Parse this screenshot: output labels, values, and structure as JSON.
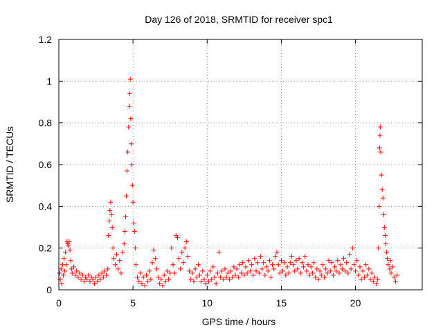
{
  "chart_data": {
    "type": "scatter",
    "title": "Day 126 of 2018, SRMTID for receiver spc1",
    "xlabel": "GPS time / hours",
    "ylabel": "SRMTID / TECUs",
    "xlim": [
      0,
      24.5
    ],
    "ylim": [
      0,
      1.2
    ],
    "xticks": [
      0,
      5,
      10,
      15,
      20
    ],
    "yticks": [
      0,
      0.2,
      0.4,
      0.6,
      0.8,
      1,
      1.2
    ],
    "ytick_labels": [
      "0",
      "0.2",
      "0.4",
      "0.6",
      "0.8",
      "1",
      "1.2"
    ],
    "grid": true,
    "marker": "+",
    "color": "#ff0000",
    "series": [
      {
        "name": "SRMTID",
        "points": [
          [
            0.05,
            0.08
          ],
          [
            0.1,
            0.05
          ],
          [
            0.15,
            0.1
          ],
          [
            0.2,
            0.03
          ],
          [
            0.25,
            0.12
          ],
          [
            0.3,
            0.07
          ],
          [
            0.35,
            0.15
          ],
          [
            0.4,
            0.09
          ],
          [
            0.45,
            0.18
          ],
          [
            0.5,
            0.12
          ],
          [
            0.55,
            0.23
          ],
          [
            0.6,
            0.22
          ],
          [
            0.65,
            0.21
          ],
          [
            0.7,
            0.23
          ],
          [
            0.75,
            0.19
          ],
          [
            0.8,
            0.14
          ],
          [
            0.85,
            0.1
          ],
          [
            0.9,
            0.08
          ],
          [
            1.0,
            0.11
          ],
          [
            1.1,
            0.07
          ],
          [
            1.2,
            0.09
          ],
          [
            1.3,
            0.06
          ],
          [
            1.4,
            0.08
          ],
          [
            1.5,
            0.05
          ],
          [
            1.6,
            0.07
          ],
          [
            1.7,
            0.04
          ],
          [
            1.8,
            0.06
          ],
          [
            1.9,
            0.05
          ],
          [
            2.0,
            0.07
          ],
          [
            2.1,
            0.04
          ],
          [
            2.2,
            0.06
          ],
          [
            2.3,
            0.05
          ],
          [
            2.4,
            0.03
          ],
          [
            2.5,
            0.06
          ],
          [
            2.6,
            0.04
          ],
          [
            2.7,
            0.07
          ],
          [
            2.8,
            0.05
          ],
          [
            2.9,
            0.08
          ],
          [
            3.0,
            0.06
          ],
          [
            3.1,
            0.09
          ],
          [
            3.2,
            0.07
          ],
          [
            3.3,
            0.1
          ],
          [
            3.35,
            0.26
          ],
          [
            3.4,
            0.33
          ],
          [
            3.45,
            0.38
          ],
          [
            3.5,
            0.42
          ],
          [
            3.55,
            0.36
          ],
          [
            3.6,
            0.3
          ],
          [
            3.65,
            0.2
          ],
          [
            3.7,
            0.15
          ],
          [
            3.8,
            0.12
          ],
          [
            3.9,
            0.17
          ],
          [
            4.0,
            0.1
          ],
          [
            4.1,
            0.14
          ],
          [
            4.2,
            0.08
          ],
          [
            4.3,
            0.18
          ],
          [
            4.4,
            0.22
          ],
          [
            4.45,
            0.28
          ],
          [
            4.5,
            0.35
          ],
          [
            4.55,
            0.45
          ],
          [
            4.6,
            0.57
          ],
          [
            4.65,
            0.66
          ],
          [
            4.7,
            0.78
          ],
          [
            4.75,
            0.88
          ],
          [
            4.78,
            0.94
          ],
          [
            4.82,
            1.01
          ],
          [
            4.85,
            0.82
          ],
          [
            4.88,
            0.7
          ],
          [
            4.92,
            0.6
          ],
          [
            4.96,
            0.5
          ],
          [
            5.0,
            0.42
          ],
          [
            5.05,
            0.32
          ],
          [
            5.1,
            0.28
          ],
          [
            5.15,
            0.2
          ],
          [
            5.2,
            0.12
          ],
          [
            5.3,
            0.06
          ],
          [
            5.4,
            0.04
          ],
          [
            5.5,
            0.08
          ],
          [
            5.6,
            0.03
          ],
          [
            5.7,
            0.06
          ],
          [
            5.8,
            0.02
          ],
          [
            5.9,
            0.07
          ],
          [
            6.0,
            0.04
          ],
          [
            6.1,
            0.09
          ],
          [
            6.2,
            0.05
          ],
          [
            6.3,
            0.13
          ],
          [
            6.4,
            0.19
          ],
          [
            6.5,
            0.15
          ],
          [
            6.6,
            0.1
          ],
          [
            6.7,
            0.06
          ],
          [
            6.8,
            0.03
          ],
          [
            6.9,
            0.05
          ],
          [
            7.0,
            0.02
          ],
          [
            7.1,
            0.07
          ],
          [
            7.2,
            0.04
          ],
          [
            7.3,
            0.09
          ],
          [
            7.4,
            0.05
          ],
          [
            7.5,
            0.08
          ],
          [
            7.6,
            0.2
          ],
          [
            7.7,
            0.12
          ],
          [
            7.8,
            0.08
          ],
          [
            7.9,
            0.26
          ],
          [
            8.0,
            0.25
          ],
          [
            8.1,
            0.15
          ],
          [
            8.2,
            0.1
          ],
          [
            8.3,
            0.18
          ],
          [
            8.4,
            0.13
          ],
          [
            8.5,
            0.2
          ],
          [
            8.6,
            0.23
          ],
          [
            8.7,
            0.16
          ],
          [
            8.8,
            0.09
          ],
          [
            8.9,
            0.05
          ],
          [
            9.0,
            0.08
          ],
          [
            9.1,
            0.04
          ],
          [
            9.2,
            0.1
          ],
          [
            9.3,
            0.06
          ],
          [
            9.4,
            0.12
          ],
          [
            9.5,
            0.07
          ],
          [
            9.6,
            0.04
          ],
          [
            9.7,
            0.09
          ],
          [
            9.8,
            0.05
          ],
          [
            9.9,
            0.03
          ],
          [
            10.0,
            0.07
          ],
          [
            10.1,
            0.04
          ],
          [
            10.2,
            0.09
          ],
          [
            10.3,
            0.05
          ],
          [
            10.4,
            0.11
          ],
          [
            10.5,
            0.06
          ],
          [
            10.6,
            0.03
          ],
          [
            10.7,
            0.08
          ],
          [
            10.8,
            0.18
          ],
          [
            10.9,
            0.06
          ],
          [
            11.0,
            0.09
          ],
          [
            11.1,
            0.05
          ],
          [
            11.2,
            0.1
          ],
          [
            11.3,
            0.06
          ],
          [
            11.4,
            0.08
          ],
          [
            11.5,
            0.05
          ],
          [
            11.6,
            0.09
          ],
          [
            11.7,
            0.06
          ],
          [
            11.8,
            0.11
          ],
          [
            11.9,
            0.07
          ],
          [
            12.0,
            0.1
          ],
          [
            12.1,
            0.06
          ],
          [
            12.2,
            0.12
          ],
          [
            12.3,
            0.08
          ],
          [
            12.4,
            0.13
          ],
          [
            12.5,
            0.07
          ],
          [
            12.6,
            0.11
          ],
          [
            12.7,
            0.08
          ],
          [
            12.8,
            0.14
          ],
          [
            12.9,
            0.09
          ],
          [
            13.0,
            0.12
          ],
          [
            13.1,
            0.07
          ],
          [
            13.2,
            0.15
          ],
          [
            13.3,
            0.09
          ],
          [
            13.4,
            0.13
          ],
          [
            13.5,
            0.08
          ],
          [
            13.6,
            0.16
          ],
          [
            13.7,
            0.1
          ],
          [
            13.8,
            0.13
          ],
          [
            13.9,
            0.07
          ],
          [
            14.0,
            0.11
          ],
          [
            14.1,
            0.09
          ],
          [
            14.2,
            0.14
          ],
          [
            14.3,
            0.06
          ],
          [
            14.4,
            0.12
          ],
          [
            14.5,
            0.1
          ],
          [
            14.6,
            0.16
          ],
          [
            14.7,
            0.18
          ],
          [
            14.8,
            0.12
          ],
          [
            14.9,
            0.08
          ],
          [
            15.0,
            0.14
          ],
          [
            15.1,
            0.09
          ],
          [
            15.2,
            0.13
          ],
          [
            15.3,
            0.07
          ],
          [
            15.4,
            0.11
          ],
          [
            15.5,
            0.08
          ],
          [
            15.6,
            0.13
          ],
          [
            15.7,
            0.16
          ],
          [
            15.8,
            0.12
          ],
          [
            15.9,
            0.09
          ],
          [
            16.0,
            0.14
          ],
          [
            16.1,
            0.1
          ],
          [
            16.2,
            0.15
          ],
          [
            16.3,
            0.08
          ],
          [
            16.4,
            0.13
          ],
          [
            16.5,
            0.11
          ],
          [
            16.6,
            0.16
          ],
          [
            16.7,
            0.09
          ],
          [
            16.8,
            0.12
          ],
          [
            16.9,
            0.07
          ],
          [
            17.0,
            0.11
          ],
          [
            17.1,
            0.08
          ],
          [
            17.2,
            0.13
          ],
          [
            17.3,
            0.06
          ],
          [
            17.4,
            0.1
          ],
          [
            17.5,
            0.05
          ],
          [
            17.6,
            0.09
          ],
          [
            17.7,
            0.07
          ],
          [
            17.8,
            0.12
          ],
          [
            17.9,
            0.06
          ],
          [
            18.0,
            0.1
          ],
          [
            18.1,
            0.08
          ],
          [
            18.2,
            0.14
          ],
          [
            18.3,
            0.09
          ],
          [
            18.4,
            0.13
          ],
          [
            18.5,
            0.07
          ],
          [
            18.6,
            0.11
          ],
          [
            18.7,
            0.09
          ],
          [
            18.8,
            0.14
          ],
          [
            18.9,
            0.08
          ],
          [
            19.0,
            0.12
          ],
          [
            19.1,
            0.1
          ],
          [
            19.2,
            0.15
          ],
          [
            19.3,
            0.09
          ],
          [
            19.4,
            0.13
          ],
          [
            19.5,
            0.08
          ],
          [
            19.6,
            0.17
          ],
          [
            19.7,
            0.1
          ],
          [
            19.8,
            0.2
          ],
          [
            19.9,
            0.12
          ],
          [
            20.0,
            0.09
          ],
          [
            20.1,
            0.14
          ],
          [
            20.2,
            0.07
          ],
          [
            20.3,
            0.11
          ],
          [
            20.4,
            0.05
          ],
          [
            20.5,
            0.09
          ],
          [
            20.6,
            0.06
          ],
          [
            20.7,
            0.12
          ],
          [
            20.8,
            0.07
          ],
          [
            20.9,
            0.1
          ],
          [
            21.0,
            0.05
          ],
          [
            21.1,
            0.08
          ],
          [
            21.2,
            0.04
          ],
          [
            21.3,
            0.06
          ],
          [
            21.4,
            0.03
          ],
          [
            21.5,
            0.05
          ],
          [
            21.55,
            0.2
          ],
          [
            21.6,
            0.4
          ],
          [
            21.62,
            0.68
          ],
          [
            21.65,
            0.74
          ],
          [
            21.67,
            0.78
          ],
          [
            21.7,
            0.66
          ],
          [
            21.75,
            0.55
          ],
          [
            21.8,
            0.48
          ],
          [
            21.85,
            0.44
          ],
          [
            21.9,
            0.36
          ],
          [
            21.95,
            0.3
          ],
          [
            22.0,
            0.26
          ],
          [
            22.05,
            0.22
          ],
          [
            22.1,
            0.18
          ],
          [
            22.15,
            0.15
          ],
          [
            22.2,
            0.12
          ],
          [
            22.3,
            0.1
          ],
          [
            22.35,
            0.14
          ],
          [
            22.4,
            0.08
          ],
          [
            22.5,
            0.11
          ],
          [
            22.6,
            0.06
          ],
          [
            22.7,
            0.04
          ],
          [
            22.8,
            0.07
          ]
        ]
      }
    ]
  }
}
